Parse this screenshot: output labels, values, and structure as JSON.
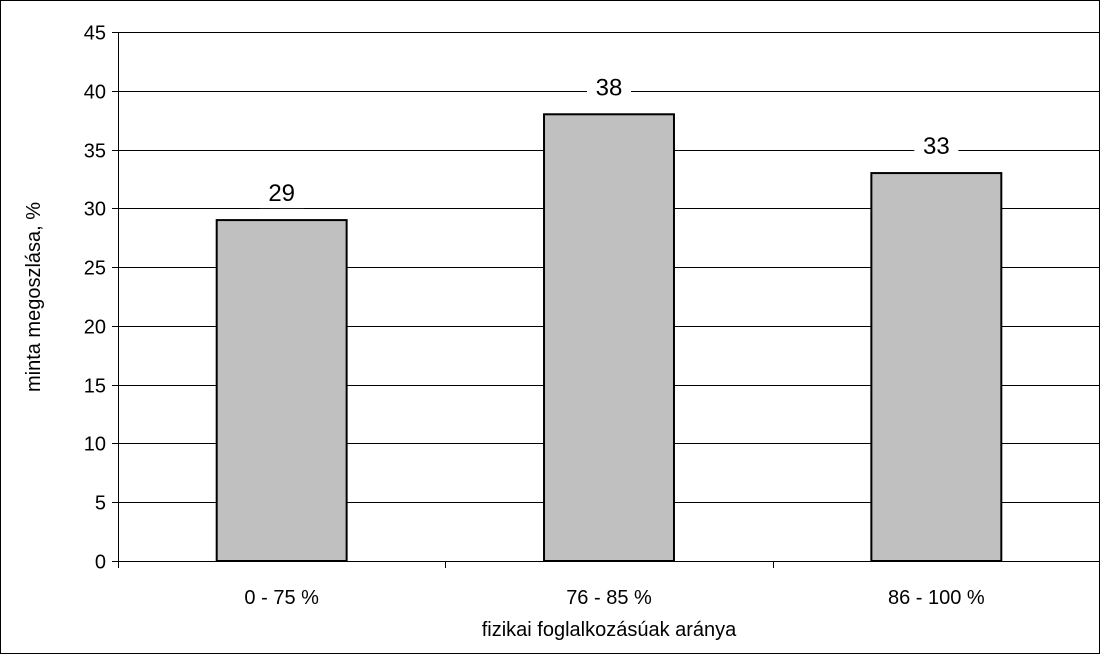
{
  "chart_data": {
    "type": "bar",
    "title": "",
    "categories": [
      "0 - 75 %",
      "76 - 85 %",
      "86 - 100 %"
    ],
    "values": [
      29,
      38,
      33
    ],
    "data_labels": [
      "29",
      "38",
      "33"
    ],
    "xlabel": "fizikai foglalkozásúak aránya",
    "ylabel": "minta megoszlása, %",
    "ylim": [
      0,
      45
    ],
    "yticks": [
      0,
      5,
      10,
      15,
      20,
      25,
      30,
      35,
      40,
      45
    ],
    "grid": true,
    "legend": "none",
    "bar_color": "#c0c0c0",
    "bar_edge_color": "#000000"
  }
}
